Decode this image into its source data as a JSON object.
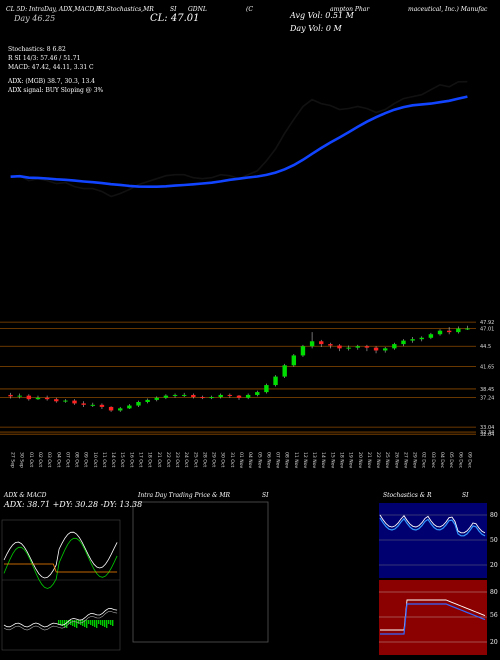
{
  "header": {
    "line1": "CL 5D: IntraDay, ADX,MACD,R",
    "line1b": "SI,Stochastics,MR",
    "line1c": "SI",
    "ticker": "GDNL",
    "line1d": "(C",
    "line1e": "ampton Phar",
    "line1f": "maceutical, Inc.) Manufac",
    "day_label": "Day",
    "day_value": "46.25",
    "close_label": "CL: 47.01",
    "avg_vol": "Avg Vol: 0.51 M",
    "day_vol": "Day Vol: 0   M",
    "stoch": "Stochastics: 8          6.82",
    "rsi": "R         SI 14/3: 57.46  / 51.71",
    "macd": "MACD: 47.42,  44.11,  3.31 C",
    "adx": "ADX:                    (MGB) 38.7,  30.3,  13.4",
    "adx_signal": "ADX  signal:                         BUY Sloping @ 3%"
  },
  "price_levels": [
    "47.01",
    "47.92",
    "44.5",
    "41.65",
    "38.45",
    "37.24",
    "32.04",
    "32.34",
    "33.04"
  ],
  "dates": [
    "27 Sep",
    "30 Sep",
    "01 Oct",
    "02 Oct",
    "03 Oct",
    "04 Oct",
    "07 Oct",
    "08 Oct",
    "09 Oct",
    "10 Oct",
    "11 Oct",
    "14 Oct",
    "15 Oct",
    "16 Oct",
    "17 Oct",
    "18 Oct",
    "21 Oct",
    "22 Oct",
    "23 Oct",
    "24 Oct",
    "25 Oct",
    "28 Oct",
    "29 Oct",
    "30 Oct",
    "31 Oct",
    "01 Nov",
    "04 Nov",
    "05 Nov",
    "06 Nov",
    "07 Nov",
    "08 Nov",
    "11 Nov",
    "12 Nov",
    "13 Nov",
    "14 Nov",
    "15 Nov",
    "18 Nov",
    "19 Nov",
    "20 Nov",
    "21 Nov",
    "22 Nov",
    "25 Nov",
    "26 Nov",
    "27 Nov",
    "29 Nov",
    "02 Dec",
    "03 Dec",
    "04 Dec",
    "05 Dec",
    "06 Dec",
    "09 Dec"
  ],
  "panels": {
    "adx_title": "ADX  & MACD",
    "adx_values": "ADX: 38.71  +DY: 30.28  -DY: 13.38",
    "intraday_title": "Intra Day Trading Price  & MR",
    "intraday_title_b": "SI",
    "stoch_title": "Stochastics  & R",
    "stoch_title_b": "SI",
    "stoch_ticks": [
      "80",
      "50",
      "20"
    ],
    "rsi_ticks": [
      "80",
      "50",
      "20"
    ],
    "rsi_value": "56"
  },
  "colors": {
    "bull": "#00dd00",
    "bear": "#ff2222",
    "ma": "#1144ff",
    "level_line": "#8b4a00",
    "rsi_bg": "#8b0000",
    "stoch_bg": "#000070"
  },
  "chart_data": {
    "type": "candlestick",
    "x": [
      "27 Sep",
      "30 Sep",
      "01 Oct",
      "02 Oct",
      "03 Oct",
      "04 Oct",
      "07 Oct",
      "08 Oct",
      "09 Oct",
      "10 Oct",
      "11 Oct",
      "14 Oct",
      "15 Oct",
      "16 Oct",
      "17 Oct",
      "18 Oct",
      "21 Oct",
      "22 Oct",
      "23 Oct",
      "24 Oct",
      "25 Oct",
      "28 Oct",
      "29 Oct",
      "30 Oct",
      "31 Oct",
      "01 Nov",
      "04 Nov",
      "05 Nov",
      "06 Nov",
      "07 Nov",
      "08 Nov",
      "11 Nov",
      "12 Nov",
      "13 Nov",
      "14 Nov",
      "15 Nov",
      "18 Nov",
      "19 Nov",
      "20 Nov",
      "21 Nov",
      "22 Nov",
      "25 Nov",
      "26 Nov",
      "27 Nov",
      "29 Nov",
      "02 Dec",
      "03 Dec",
      "04 Dec",
      "05 Dec",
      "06 Dec",
      "09 Dec"
    ],
    "open": [
      37.6,
      37.4,
      37.5,
      37.0,
      37.2,
      37.0,
      36.7,
      36.8,
      36.4,
      36.2,
      36.2,
      35.9,
      35.4,
      35.7,
      36.1,
      36.6,
      36.9,
      37.2,
      37.5,
      37.6,
      37.6,
      37.3,
      37.2,
      37.3,
      37.6,
      37.5,
      37.2,
      37.6,
      38.0,
      39.0,
      40.2,
      41.8,
      43.2,
      44.5,
      45.2,
      44.8,
      44.6,
      44.2,
      44.3,
      44.5,
      44.3,
      43.9,
      44.2,
      44.8,
      45.3,
      45.5,
      45.7,
      46.2,
      46.7,
      46.5,
      47.0
    ],
    "close": [
      37.4,
      37.5,
      37.0,
      37.2,
      37.0,
      36.7,
      36.8,
      36.4,
      36.2,
      36.2,
      35.9,
      35.4,
      35.7,
      36.1,
      36.6,
      36.9,
      37.2,
      37.5,
      37.6,
      37.6,
      37.3,
      37.2,
      37.3,
      37.6,
      37.5,
      37.2,
      37.6,
      38.0,
      39.0,
      40.2,
      41.8,
      43.2,
      44.5,
      45.2,
      44.8,
      44.6,
      44.2,
      44.3,
      44.5,
      44.3,
      43.9,
      44.2,
      44.8,
      45.3,
      45.5,
      45.7,
      46.2,
      46.7,
      46.5,
      47.0,
      47.01
    ],
    "high": [
      37.9,
      37.8,
      37.7,
      37.5,
      37.5,
      37.2,
      37.0,
      37.0,
      36.7,
      36.5,
      36.4,
      36.0,
      35.9,
      36.3,
      36.8,
      37.1,
      37.4,
      37.7,
      37.8,
      37.9,
      37.8,
      37.5,
      37.5,
      37.8,
      37.8,
      37.6,
      37.8,
      38.2,
      39.2,
      40.4,
      42.0,
      43.4,
      44.7,
      46.5,
      45.4,
      45.0,
      44.8,
      44.6,
      44.7,
      44.7,
      44.5,
      44.4,
      45.0,
      45.5,
      45.8,
      45.9,
      46.4,
      46.9,
      47.2,
      47.3,
      47.4
    ],
    "low": [
      37.1,
      37.1,
      36.8,
      36.9,
      36.8,
      36.5,
      36.5,
      36.2,
      35.9,
      35.9,
      35.6,
      35.2,
      35.2,
      35.6,
      35.9,
      36.4,
      36.7,
      37.0,
      37.2,
      37.3,
      37.1,
      37.0,
      37.0,
      37.1,
      37.2,
      36.9,
      37.0,
      37.4,
      37.8,
      38.8,
      40.0,
      41.6,
      43.0,
      44.2,
      44.4,
      44.2,
      43.8,
      43.9,
      44.0,
      43.8,
      43.5,
      43.6,
      44.0,
      44.5,
      45.0,
      45.2,
      45.5,
      46.0,
      46.2,
      46.3,
      46.8
    ],
    "ylim": [
      31.5,
      48.5
    ]
  }
}
